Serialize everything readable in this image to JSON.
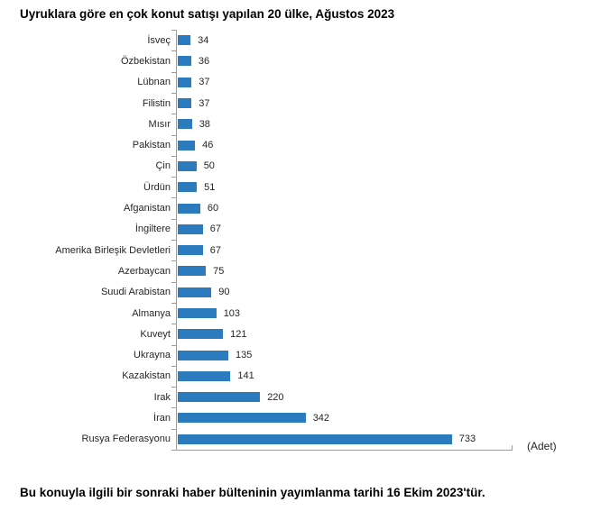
{
  "chart_data": {
    "type": "bar",
    "orientation": "horizontal",
    "title": "Uyruklara göre en çok konut satışı yapılan 20 ülke, Ağustos 2023",
    "unit_label": "(Adet)",
    "categories": [
      "İsveç",
      "Özbekistan",
      "Lübnan",
      "Filistin",
      "Mısır",
      "Pakistan",
      "Çin",
      "Ürdün",
      "Afganistan",
      "İngiltere",
      "Amerika Birleşik Devletleri",
      "Azerbaycan",
      "Suudi Arabistan",
      "Almanya",
      "Kuveyt",
      "Ukrayna",
      "Kazakistan",
      "Irak",
      "İran",
      "Rusya Federasyonu"
    ],
    "values": [
      34,
      36,
      37,
      37,
      38,
      46,
      50,
      51,
      60,
      67,
      67,
      75,
      90,
      103,
      121,
      135,
      141,
      220,
      342,
      733
    ],
    "xlim": [
      0,
      900
    ],
    "value_labels_shown": true,
    "sort_order": "ascending-top-to-bottom",
    "legend": "none",
    "grid": "off",
    "bar_color": "#2B7BBE",
    "axis_color": "#9C9C9C",
    "text_color": "#262626"
  },
  "footer": {
    "note": "Bu konuyla ilgili bir sonraki haber bülteninin yayımlanma tarihi 16 Ekim 2023'tür."
  }
}
